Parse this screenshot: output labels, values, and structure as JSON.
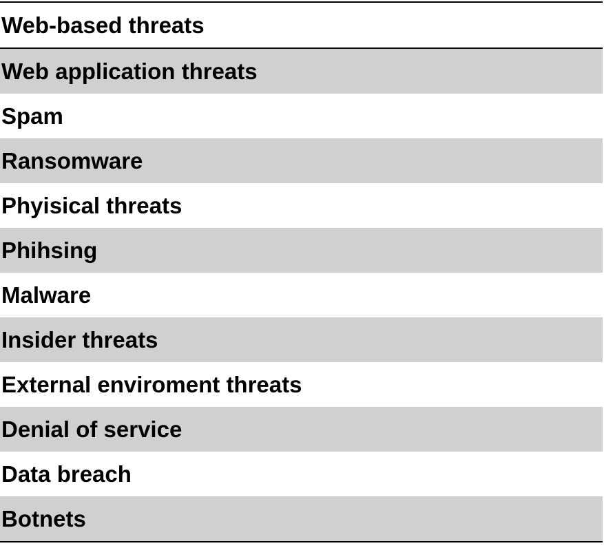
{
  "table": {
    "header": "Web-based threats",
    "rows": [
      "Web application threats",
      "Spam",
      "Ransomware",
      "Phyisical threats",
      "Phihsing",
      "Malware",
      "Insider threats",
      "External enviroment threats",
      "Denial of service",
      "Data breach",
      "Botnets"
    ],
    "shade_color": "#d0d0d0",
    "rule_color": "#000000"
  }
}
